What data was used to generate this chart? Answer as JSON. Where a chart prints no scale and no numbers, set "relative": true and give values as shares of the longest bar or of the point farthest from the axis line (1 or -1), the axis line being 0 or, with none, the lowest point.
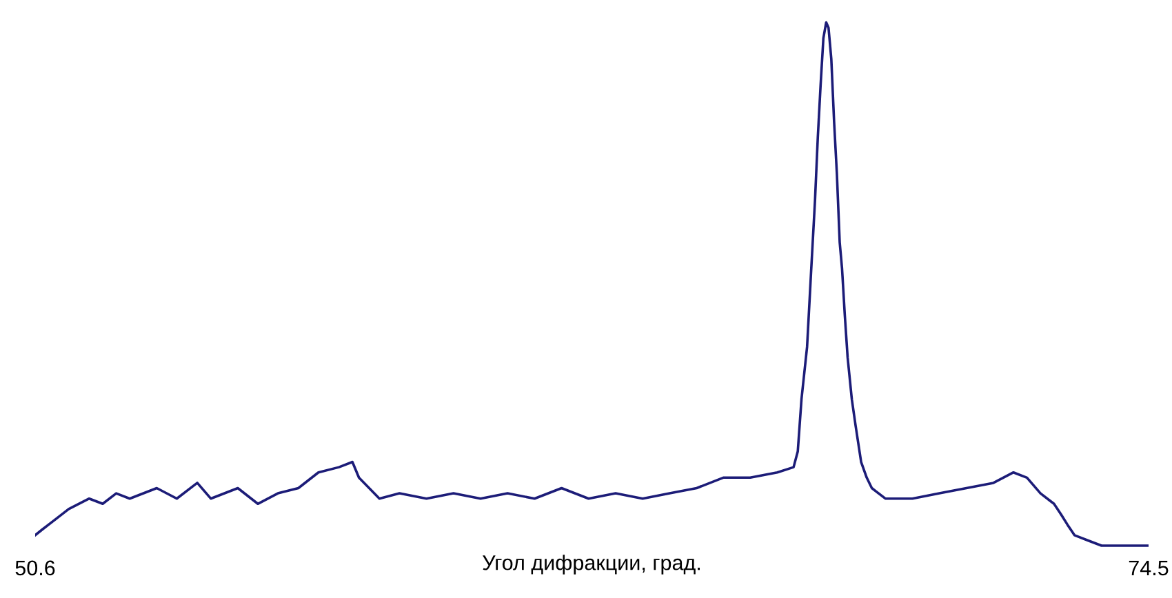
{
  "chart_data": {
    "type": "line",
    "relative": true,
    "xlabel": "Угол дифракции, град.",
    "xlim": [
      50.6,
      74.5
    ],
    "xticks": [
      50.6,
      74.5
    ],
    "grid": false,
    "legend": false,
    "series": [
      {
        "color": "#1c1c78",
        "x": [
          50.6,
          50.74,
          51.03,
          51.32,
          51.76,
          52.05,
          52.34,
          52.63,
          53.21,
          53.64,
          54.08,
          54.37,
          54.95,
          55.38,
          55.81,
          56.25,
          56.68,
          57.12,
          57.41,
          57.55,
          57.99,
          58.42,
          59.0,
          59.58,
          60.16,
          60.74,
          61.32,
          61.9,
          62.48,
          63.06,
          63.64,
          64.22,
          64.8,
          65.37,
          65.95,
          66.53,
          66.88,
          66.97,
          67.05,
          67.17,
          67.26,
          67.34,
          67.4,
          67.46,
          67.52,
          67.58,
          67.63,
          67.69,
          67.75,
          67.81,
          67.87,
          67.92,
          67.98,
          68.04,
          68.13,
          68.21,
          68.33,
          68.45,
          68.56,
          68.85,
          69.43,
          70.01,
          70.59,
          71.17,
          71.6,
          71.89,
          72.18,
          72.47,
          72.62,
          72.76,
          72.91,
          73.2,
          73.49,
          73.78,
          74.07,
          74.36,
          74.5
        ],
        "values": [
          0.02,
          0.03,
          0.05,
          0.07,
          0.09,
          0.08,
          0.1,
          0.09,
          0.11,
          0.09,
          0.12,
          0.09,
          0.11,
          0.08,
          0.1,
          0.11,
          0.14,
          0.15,
          0.16,
          0.13,
          0.09,
          0.1,
          0.09,
          0.1,
          0.09,
          0.1,
          0.09,
          0.11,
          0.09,
          0.1,
          0.09,
          0.1,
          0.11,
          0.13,
          0.13,
          0.14,
          0.15,
          0.18,
          0.28,
          0.38,
          0.53,
          0.66,
          0.78,
          0.88,
          0.97,
          1,
          0.99,
          0.93,
          0.81,
          0.71,
          0.58,
          0.53,
          0.44,
          0.36,
          0.28,
          0.23,
          0.16,
          0.13,
          0.11,
          0.09,
          0.09,
          0.1,
          0.11,
          0.12,
          0.14,
          0.13,
          0.1,
          0.08,
          0.06,
          0.04,
          0.02,
          0.01,
          0,
          0,
          0,
          0,
          0
        ]
      }
    ]
  }
}
